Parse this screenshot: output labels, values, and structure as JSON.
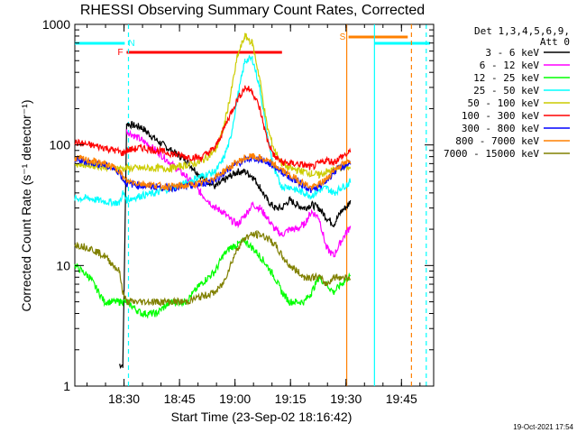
{
  "chart_data": {
    "type": "line",
    "title": "RHESSI Observing Summary Count Rates, Corrected",
    "xlabel": "Start Time (23-Sep-02 18:16:42)",
    "ylabel": "Corrected Count Rate (s⁻¹ detector⁻¹)",
    "yscale": "log",
    "ylim": [
      1,
      1000
    ],
    "xlim_minutes": [
      0,
      97
    ],
    "x_tick_labels": [
      "18:30",
      "18:45",
      "19:00",
      "19:15",
      "19:30",
      "19:45"
    ],
    "x_tick_minutes": [
      13.3,
      28.3,
      43.3,
      58.3,
      73.3,
      88.3
    ],
    "y_tick_labels": [
      "1",
      "10",
      "100",
      "1000"
    ],
    "y_tick_values": [
      1,
      10,
      100,
      1000
    ],
    "legend_header": [
      "Det 1,3,4,5,6,9,",
      "Att 0"
    ],
    "legend_position": "right",
    "timestamp": "19-Oct-2021 17:54",
    "x_minutes": [
      0,
      4,
      8,
      12,
      13,
      14,
      18,
      22,
      26,
      30,
      34,
      38,
      40,
      42,
      44,
      46,
      48,
      50,
      52,
      54,
      56,
      58,
      60,
      62,
      64,
      66,
      68,
      70,
      72,
      74,
      74.5
    ],
    "series": [
      {
        "name": "3 - 6 keV",
        "color": "#000000",
        "values": [
          null,
          null,
          null,
          1.5,
          1.5,
          150,
          140,
          110,
          90,
          75,
          55,
          45,
          50,
          55,
          60,
          60,
          55,
          45,
          35,
          30,
          30,
          35,
          32,
          30,
          32,
          30,
          25,
          22,
          28,
          32,
          35
        ]
      },
      {
        "name": "6 - 12 keV",
        "color": "#ff00ff",
        "values": [
          null,
          null,
          null,
          null,
          null,
          130,
          110,
          90,
          70,
          55,
          40,
          30,
          28,
          24,
          22,
          26,
          32,
          30,
          25,
          20,
          18,
          20,
          20,
          22,
          28,
          25,
          14,
          12,
          16,
          20,
          22
        ]
      },
      {
        "name": "12 - 25 keV",
        "color": "#00ff00",
        "values": [
          10,
          8,
          5,
          5,
          5,
          5,
          4,
          4,
          5,
          5,
          7,
          9,
          12,
          14,
          15,
          16,
          14,
          12,
          10,
          8,
          6,
          5,
          5,
          5,
          6,
          8,
          7,
          6,
          7,
          8,
          8
        ]
      },
      {
        "name": "25 - 50 keV",
        "color": "#00ffff",
        "values": [
          36,
          36,
          34,
          33,
          40,
          35,
          38,
          40,
          44,
          48,
          55,
          60,
          75,
          110,
          250,
          500,
          520,
          300,
          120,
          60,
          45,
          45,
          42,
          40,
          38,
          42,
          44,
          40,
          44,
          48,
          50
        ]
      },
      {
        "name": "50 - 100 keV",
        "color": "#cccc00",
        "values": [
          70,
          68,
          66,
          64,
          64,
          64,
          64,
          64,
          64,
          68,
          72,
          90,
          130,
          250,
          550,
          800,
          700,
          350,
          140,
          90,
          70,
          64,
          62,
          60,
          58,
          56,
          60,
          62,
          64,
          66,
          68
        ]
      },
      {
        "name": "100 - 300 keV",
        "color": "#ff0000",
        "values": [
          105,
          100,
          95,
          88,
          85,
          90,
          95,
          90,
          85,
          80,
          78,
          95,
          130,
          180,
          240,
          300,
          280,
          200,
          110,
          80,
          72,
          70,
          70,
          68,
          65,
          70,
          75,
          72,
          80,
          85,
          90
        ]
      },
      {
        "name": "300 - 800 keV",
        "color": "#0000ff",
        "values": [
          75,
          72,
          68,
          60,
          52,
          48,
          46,
          45,
          44,
          45,
          47,
          52,
          58,
          64,
          70,
          75,
          78,
          76,
          72,
          66,
          60,
          54,
          50,
          46,
          42,
          45,
          50,
          60,
          65,
          70,
          72
        ]
      },
      {
        "name": "800 - 7000 keV",
        "color": "#ff8000",
        "values": [
          78,
          74,
          70,
          62,
          54,
          50,
          48,
          46,
          45,
          46,
          48,
          54,
          60,
          66,
          72,
          78,
          80,
          78,
          74,
          68,
          62,
          56,
          52,
          48,
          44,
          47,
          52,
          62,
          68,
          72,
          74
        ]
      },
      {
        "name": "7000 - 15000 keV",
        "color": "#808000",
        "values": [
          15,
          14,
          12,
          9,
          6,
          5,
          5,
          5,
          5,
          5,
          5.5,
          6,
          7,
          10,
          14,
          17,
          18,
          18,
          17,
          15,
          12,
          10,
          9,
          8,
          8,
          8,
          7,
          8,
          8,
          8,
          8
        ]
      }
    ],
    "flag_bars": [
      {
        "label": "N",
        "color": "#00ffff",
        "segments": [
          [
            0,
            13.5
          ],
          [
            81,
            96
          ]
        ]
      },
      {
        "label": "F",
        "color": "#ff0000",
        "segments": [
          [
            14,
            56
          ]
        ]
      },
      {
        "label": "S",
        "color": "#ff8000",
        "segments": [
          [
            74,
            90
          ]
        ]
      }
    ],
    "vertical_lines": [
      {
        "minute": 14.5,
        "color": "#00ffff",
        "style": "dashed"
      },
      {
        "minute": 73.5,
        "color": "#ff8000",
        "style": "solid"
      },
      {
        "minute": 81,
        "color": "#00ffff",
        "style": "solid"
      },
      {
        "minute": 91,
        "color": "#ff8000",
        "style": "dashed"
      },
      {
        "minute": 95,
        "color": "#00ffff",
        "style": "dashed"
      }
    ]
  }
}
